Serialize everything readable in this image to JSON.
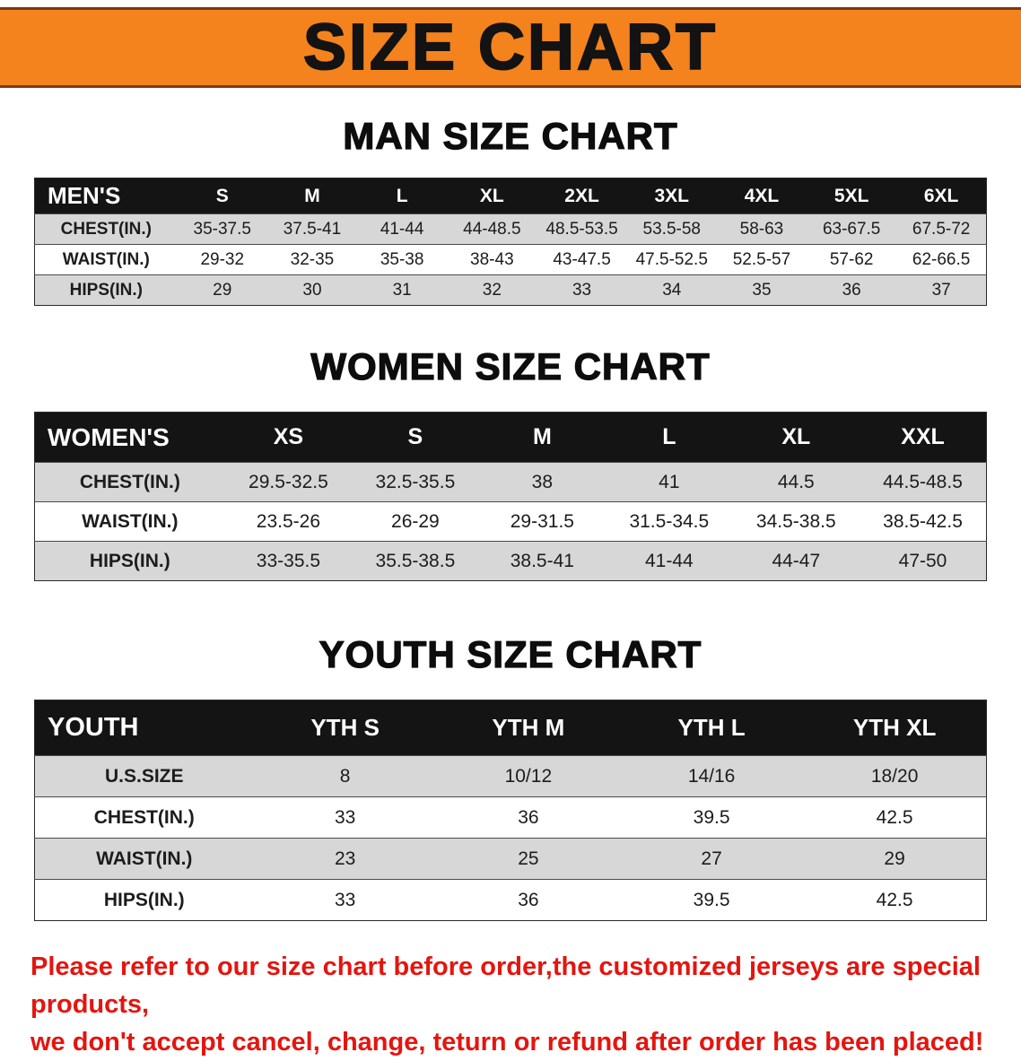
{
  "colors": {
    "banner-bg": "#f4831d",
    "banner-edge": "#7a3a10",
    "header-black": "#141414",
    "row-shade": "#d7d7d7",
    "footer-red": "#e4150f"
  },
  "banner": {
    "title": "SIZE CHART"
  },
  "sections": [
    {
      "heading": "MAN SIZE CHART",
      "table": {
        "header": [
          "MEN'S",
          "S",
          "M",
          "L",
          "XL",
          "2XL",
          "3XL",
          "4XL",
          "5XL",
          "6XL"
        ],
        "rows": [
          {
            "label": "CHEST(IN.)",
            "values": [
              "35-37.5",
              "37.5-41",
              "41-44",
              "44-48.5",
              "48.5-53.5",
              "53.5-58",
              "58-63",
              "63-67.5",
              "67.5-72"
            ]
          },
          {
            "label": "WAIST(IN.)",
            "values": [
              "29-32",
              "32-35",
              "35-38",
              "38-43",
              "43-47.5",
              "47.5-52.5",
              "52.5-57",
              "57-62",
              "62-66.5"
            ]
          },
          {
            "label": "HIPS(IN.)",
            "values": [
              "29",
              "30",
              "31",
              "32",
              "33",
              "34",
              "35",
              "36",
              "37"
            ]
          }
        ]
      }
    },
    {
      "heading": "WOMEN SIZE CHART",
      "table": {
        "header": [
          "WOMEN'S",
          "XS",
          "S",
          "M",
          "L",
          "XL",
          "XXL"
        ],
        "rows": [
          {
            "label": "CHEST(IN.)",
            "values": [
              "29.5-32.5",
              "32.5-35.5",
              "38",
              "41",
              "44.5",
              "44.5-48.5"
            ]
          },
          {
            "label": "WAIST(IN.)",
            "values": [
              "23.5-26",
              "26-29",
              "29-31.5",
              "31.5-34.5",
              "34.5-38.5",
              "38.5-42.5"
            ]
          },
          {
            "label": "HIPS(IN.)",
            "values": [
              "33-35.5",
              "35.5-38.5",
              "38.5-41",
              "41-44",
              "44-47",
              "47-50"
            ]
          }
        ]
      }
    },
    {
      "heading": "YOUTH SIZE CHART",
      "table": {
        "header": [
          "YOUTH",
          "YTH S",
          "YTH M",
          "YTH L",
          "YTH XL"
        ],
        "rows": [
          {
            "label": "U.S.SIZE",
            "values": [
              "8",
              "10/12",
              "14/16",
              "18/20"
            ]
          },
          {
            "label": "CHEST(IN.)",
            "values": [
              "33",
              "36",
              "39.5",
              "42.5"
            ]
          },
          {
            "label": "WAIST(IN.)",
            "values": [
              "23",
              "25",
              "27",
              "29"
            ]
          },
          {
            "label": "HIPS(IN.)",
            "values": [
              "33",
              "36",
              "39.5",
              "42.5"
            ]
          }
        ]
      }
    }
  ],
  "footer": {
    "line1": "Please refer to our size chart before order,the customized jerseys are special products,",
    "line2": "we don't accept cancel, change, teturn or refund after order has been placed!"
  }
}
